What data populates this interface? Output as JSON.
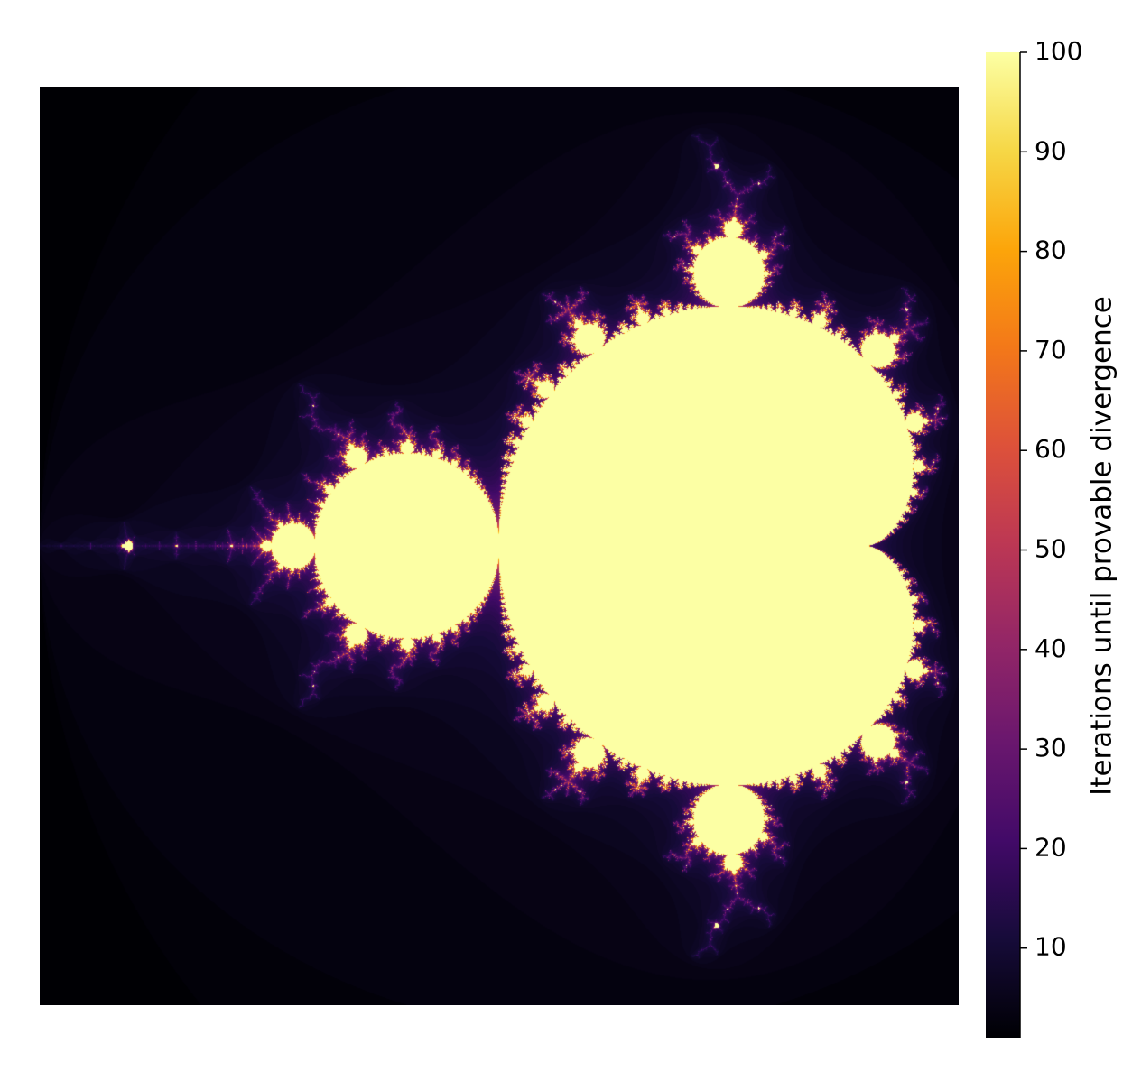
{
  "chart_data": {
    "type": "heatmap",
    "xlim": [
      -2,
      0.5
    ],
    "ylim": [
      -1.25,
      1.25
    ],
    "colormap": "inferno",
    "colorbar": {
      "label": "Iterations until provable divergence",
      "clim": [
        1,
        100
      ],
      "ticks": [
        10,
        20,
        30,
        40,
        50,
        60,
        70,
        80,
        90,
        100
      ]
    }
  }
}
